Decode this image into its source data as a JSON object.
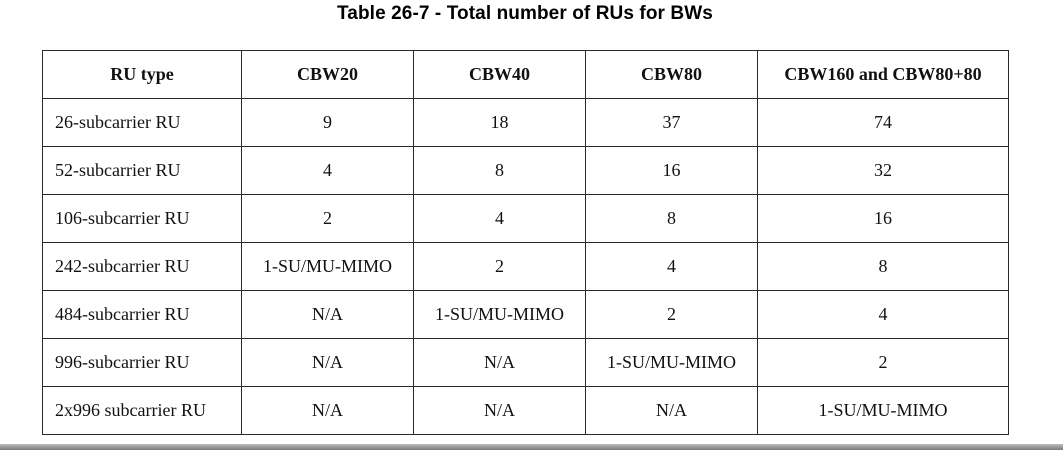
{
  "caption": "Table 26-7 - Total number of RUs for BWs",
  "table": {
    "headers": [
      "RU type",
      "CBW20",
      "CBW40",
      "CBW80",
      "CBW160 and CBW80+80"
    ],
    "rows": [
      [
        "26-subcarrier RU",
        "9",
        "18",
        "37",
        "74"
      ],
      [
        "52-subcarrier RU",
        "4",
        "8",
        "16",
        "32"
      ],
      [
        "106-subcarrier RU",
        "2",
        "4",
        "8",
        "16"
      ],
      [
        "242-subcarrier RU",
        "1-SU/MU-MIMO",
        "2",
        "4",
        "8"
      ],
      [
        "484-subcarrier RU",
        "N/A",
        "1-SU/MU-MIMO",
        "2",
        "4"
      ],
      [
        "996-subcarrier RU",
        "N/A",
        "N/A",
        "1-SU/MU-MIMO",
        "2"
      ],
      [
        "2x996 subcarrier RU",
        "N/A",
        "N/A",
        "N/A",
        "1-SU/MU-MIMO"
      ]
    ]
  }
}
